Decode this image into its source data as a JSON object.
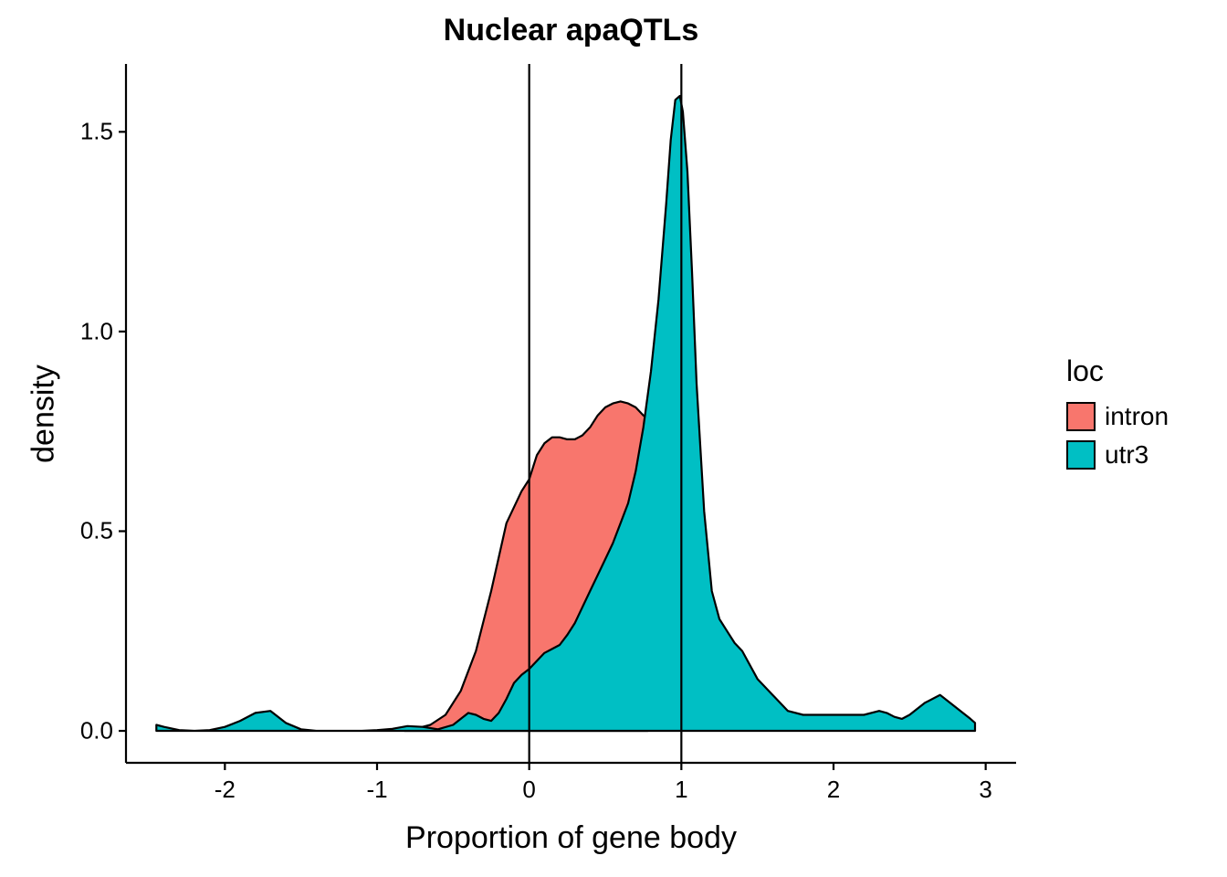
{
  "chart_data": {
    "type": "area",
    "title": "Nuclear apaQTLs",
    "xlabel": "Proportion of gene body",
    "ylabel": "density",
    "xlim": [
      -2.65,
      3.2
    ],
    "ylim": [
      -0.08,
      1.67
    ],
    "x_ticks": [
      -2,
      -1,
      0,
      1,
      2,
      3
    ],
    "x_tick_labels": [
      "-2",
      "-1",
      "0",
      "1",
      "2",
      "3"
    ],
    "y_ticks": [
      0.0,
      0.5,
      1.0,
      1.5
    ],
    "y_tick_labels": [
      "0.0",
      "0.5",
      "1.0",
      "1.5"
    ],
    "vlines": [
      0,
      1
    ],
    "grid": false,
    "legend": {
      "title": "loc",
      "position": "right"
    },
    "series": [
      {
        "name": "intron",
        "color": "#F8766D",
        "x": [
          -0.82,
          -0.75,
          -0.65,
          -0.55,
          -0.45,
          -0.35,
          -0.25,
          -0.15,
          -0.05,
          0.0,
          0.05,
          0.1,
          0.15,
          0.2,
          0.25,
          0.3,
          0.35,
          0.4,
          0.45,
          0.5,
          0.55,
          0.6,
          0.65,
          0.7,
          0.75,
          0.78
        ],
        "y": [
          0.0,
          0.005,
          0.015,
          0.04,
          0.1,
          0.2,
          0.35,
          0.52,
          0.6,
          0.63,
          0.69,
          0.72,
          0.735,
          0.735,
          0.73,
          0.73,
          0.74,
          0.76,
          0.79,
          0.81,
          0.82,
          0.825,
          0.82,
          0.81,
          0.79,
          0.78
        ]
      },
      {
        "name": "utr3",
        "color": "#00BFC4",
        "x": [
          -2.45,
          -2.4,
          -2.3,
          -2.2,
          -2.1,
          -2.0,
          -1.9,
          -1.8,
          -1.7,
          -1.6,
          -1.5,
          -1.4,
          -1.3,
          -1.2,
          -1.1,
          -1.0,
          -0.9,
          -0.8,
          -0.7,
          -0.6,
          -0.5,
          -0.45,
          -0.4,
          -0.35,
          -0.3,
          -0.25,
          -0.2,
          -0.15,
          -0.1,
          -0.05,
          0.0,
          0.05,
          0.1,
          0.15,
          0.2,
          0.25,
          0.3,
          0.35,
          0.4,
          0.45,
          0.5,
          0.55,
          0.6,
          0.65,
          0.7,
          0.75,
          0.8,
          0.85,
          0.9,
          0.93,
          0.96,
          0.99,
          1.01,
          1.04,
          1.07,
          1.1,
          1.15,
          1.2,
          1.25,
          1.3,
          1.35,
          1.4,
          1.5,
          1.6,
          1.7,
          1.8,
          1.9,
          2.0,
          2.1,
          2.2,
          2.3,
          2.35,
          2.4,
          2.45,
          2.5,
          2.6,
          2.7,
          2.8,
          2.9,
          2.93
        ],
        "y": [
          0.015,
          0.01,
          0.002,
          0.0,
          0.002,
          0.01,
          0.025,
          0.045,
          0.05,
          0.02,
          0.004,
          0.0,
          0.0,
          0.0,
          0.0,
          0.002,
          0.005,
          0.012,
          0.01,
          0.004,
          0.015,
          0.03,
          0.045,
          0.04,
          0.03,
          0.025,
          0.045,
          0.08,
          0.12,
          0.14,
          0.155,
          0.175,
          0.195,
          0.205,
          0.215,
          0.24,
          0.27,
          0.31,
          0.35,
          0.39,
          0.43,
          0.47,
          0.52,
          0.57,
          0.65,
          0.76,
          0.9,
          1.08,
          1.32,
          1.48,
          1.58,
          1.59,
          1.55,
          1.4,
          1.15,
          0.87,
          0.55,
          0.35,
          0.28,
          0.25,
          0.22,
          0.2,
          0.13,
          0.09,
          0.05,
          0.04,
          0.04,
          0.04,
          0.04,
          0.04,
          0.05,
          0.045,
          0.035,
          0.03,
          0.04,
          0.07,
          0.09,
          0.06,
          0.03,
          0.02
        ]
      }
    ]
  }
}
